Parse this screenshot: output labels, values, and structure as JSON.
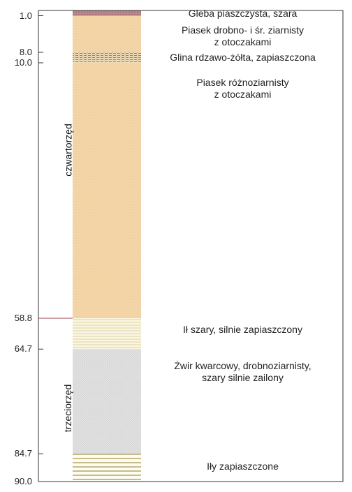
{
  "column": {
    "depth_max": 90.0,
    "layers": [
      {
        "top": 0.0,
        "bottom": 1.0,
        "pattern": "soil",
        "color": "#b9858a",
        "description": "Gleba piaszczysta, szara"
      },
      {
        "top": 1.0,
        "bottom": 8.0,
        "pattern": "sand",
        "color": "#f5d7a9",
        "description": "Piasek drobno- i śr. ziarnisty\nz otoczakami"
      },
      {
        "top": 8.0,
        "bottom": 10.0,
        "pattern": "clay",
        "color": "#eedcb8",
        "description": "Glina rdzawo-żółta, zapiaszczona"
      },
      {
        "top": 10.0,
        "bottom": 58.8,
        "pattern": "sand",
        "color": "#f5d7a9",
        "description": "Piasek różnoziarnisty\nz otoczakami"
      },
      {
        "top": 58.8,
        "bottom": 64.7,
        "pattern": "silt",
        "color": "#fbf6e4",
        "description": "Ił szary, silnie zapiaszczony"
      },
      {
        "top": 64.7,
        "bottom": 84.7,
        "pattern": "gravel",
        "color": "#dcdcdc",
        "description": "Żwir kwarcowy, drobnoziarnisty,\nszary silnie zailony"
      },
      {
        "top": 84.7,
        "bottom": 90.0,
        "pattern": "clay-lines",
        "color": "#fffdf2",
        "description": "Iły zapiaszczone"
      }
    ],
    "depth_labels": [
      "1.0",
      "8.0",
      "10.0",
      "58.8",
      "64.7",
      "84.7",
      "90.0"
    ],
    "depth_values": [
      1.0,
      8.0,
      10.0,
      58.8,
      64.7,
      84.7,
      90.0
    ],
    "eras": [
      {
        "label": "czwartorzęd",
        "top": 0.0,
        "bottom": 58.8
      },
      {
        "label": "trzeciorzęd",
        "top": 58.8,
        "bottom": 90.0
      }
    ]
  }
}
